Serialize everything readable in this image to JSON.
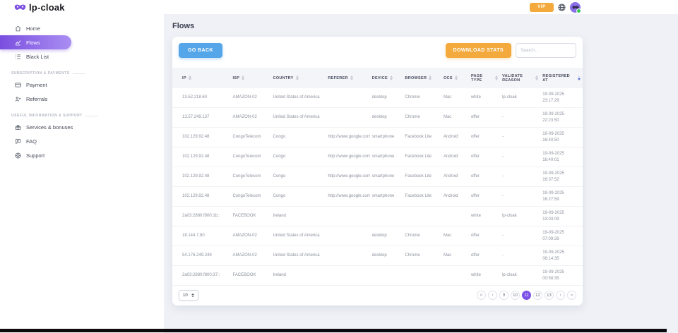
{
  "topbar": {
    "logo_text": "lp-cloak",
    "vip_label": "VIP"
  },
  "sidebar": {
    "items": [
      {
        "label": "Home",
        "icon": "home-icon",
        "active": false
      },
      {
        "label": "Flows",
        "icon": "flows-icon",
        "active": true
      },
      {
        "label": "Black List",
        "icon": "blacklist-icon",
        "active": false
      }
    ],
    "sections": [
      {
        "title": "SUBSCRIPTION & PAYMENTS",
        "items": [
          {
            "label": "Payment",
            "icon": "payment-icon"
          },
          {
            "label": "Referrals",
            "icon": "referrals-icon"
          }
        ]
      },
      {
        "title": "USEFUL INFORMATION & SUPPORT",
        "items": [
          {
            "label": "Services & bonuses",
            "icon": "services-icon"
          },
          {
            "label": "FAQ",
            "icon": "faq-icon"
          },
          {
            "label": "Support",
            "icon": "support-icon"
          }
        ]
      }
    ]
  },
  "main": {
    "page_title": "Flows",
    "go_back_label": "GO BACK",
    "download_stats_label": "DOWNLOAD STATS",
    "search_placeholder": "Search...",
    "table": {
      "columns": [
        {
          "label": "IP"
        },
        {
          "label": "ISP"
        },
        {
          "label": "COUNTRY"
        },
        {
          "label": "REFERER"
        },
        {
          "label": "DEVICE"
        },
        {
          "label": "BROWSER"
        },
        {
          "label": "OCS"
        },
        {
          "label": "PAGE TYPE"
        },
        {
          "label": "VALIDATE REASON"
        },
        {
          "label": "REGISTERED AT",
          "sorted": "desc"
        }
      ],
      "rows": [
        [
          "13.52.218.60",
          "AMAZON-02",
          "United States of America",
          "",
          "desktop",
          "Chrome",
          "Mac",
          "white",
          "lp-cloak",
          "19-09-2025 23:17:29"
        ],
        [
          "13.57.249.137",
          "AMAZON-02",
          "United States of America",
          "",
          "desktop",
          "Chrome",
          "Mac",
          "offer",
          "-",
          "19-09-2025 22:23:50"
        ],
        [
          "102.129.92.48",
          "CongoTelecom",
          "Congo",
          "http://www.google.com/",
          "smartphone",
          "Facebook Lite",
          "Android",
          "offer",
          "-",
          "19-09-2025 16:40:50"
        ],
        [
          "102.129.92.48",
          "CongoTelecom",
          "Congo",
          "http://www.google.com/",
          "smartphone",
          "Facebook Lite",
          "Android",
          "offer",
          "-",
          "19-09-2025 16:40:01"
        ],
        [
          "102.129.92.48",
          "CongoTelecom",
          "Congo",
          "http://www.google.com/",
          "smartphone",
          "Facebook Lite",
          "Android",
          "offer",
          "-",
          "19-09-2025 16:37:52"
        ],
        [
          "102.129.92.48",
          "CongoTelecom",
          "Congo",
          "http://www.google.com/",
          "smartphone",
          "Facebook Lite",
          "Android",
          "offer",
          "-",
          "19-09-2025 16:27:59"
        ],
        [
          "2a03:2880:f800:1b::",
          "FACEBOOK",
          "Ireland",
          "",
          "",
          "",
          "",
          "white",
          "lp-cloak",
          "19-09-2025 13:03:09"
        ],
        [
          "18.144.7.80",
          "AMAZON-02",
          "United States of America",
          "",
          "desktop",
          "Chrome",
          "Mac",
          "offer",
          "-",
          "19-09-2025 07:09:26"
        ],
        [
          "54.176.249.249",
          "AMAZON-02",
          "United States of America",
          "",
          "desktop",
          "Chrome",
          "Mac",
          "offer",
          "-",
          "19-09-2025 06:14:35"
        ],
        [
          "2a03:2880:f800:37::",
          "FACEBOOK",
          "Ireland",
          "",
          "",
          "",
          "",
          "white",
          "lp-cloak",
          "19-09-2025 00:58:35"
        ]
      ]
    },
    "pagination": {
      "per_page": "10",
      "first_label": "«",
      "prev_label": "‹",
      "pages": [
        "9",
        "10",
        "11",
        "12",
        "13"
      ],
      "active_page": "11",
      "next_label": "›",
      "last_label": "»"
    }
  },
  "colors": {
    "accent_purple": "#7c53e6",
    "accent_blue": "#55a6e8",
    "accent_amber": "#f3a93c",
    "online_green": "#35c759"
  }
}
